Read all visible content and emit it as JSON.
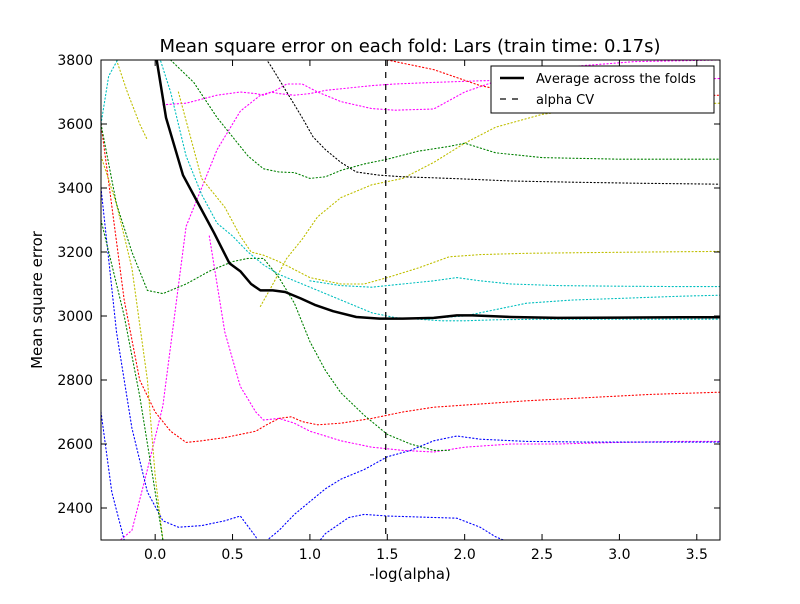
{
  "chart_data": {
    "type": "line",
    "title": "Mean square error on each fold: Lars (train time: 0.17s)",
    "xlabel": "-log(alpha)",
    "ylabel": "Mean square error",
    "xlim": [
      -0.35,
      3.65
    ],
    "ylim": [
      2300,
      3800
    ],
    "x_ticks": [
      0.0,
      0.5,
      1.0,
      1.5,
      2.0,
      2.5,
      3.0,
      3.5
    ],
    "x_tick_labels": [
      "0.0",
      "0.5",
      "1.0",
      "1.5",
      "2.0",
      "2.5",
      "3.0",
      "3.5"
    ],
    "y_ticks": [
      2400,
      2600,
      2800,
      3000,
      3200,
      3400,
      3600,
      3800
    ],
    "y_tick_labels": [
      "2400",
      "2600",
      "2800",
      "3000",
      "3200",
      "3400",
      "3600",
      "3800"
    ],
    "grid": false,
    "legend_position": "top-right",
    "legend": [
      {
        "label": "Average across the folds",
        "style": "solid",
        "color": "#000000"
      },
      {
        "label": "alpha CV",
        "style": "dashed",
        "color": "#000000"
      }
    ],
    "alpha_cv_x": 1.49,
    "average": {
      "color": "#000000",
      "x": [
        0.01,
        0.07,
        0.18,
        0.28,
        0.38,
        0.48,
        0.55,
        0.62,
        0.68,
        0.76,
        0.84,
        0.94,
        1.03,
        1.15,
        1.3,
        1.45,
        1.6,
        1.8,
        1.95,
        2.05,
        2.3,
        2.6,
        3.0,
        3.4,
        3.65
      ],
      "y": [
        3800,
        3620,
        3440,
        3350,
        3260,
        3165,
        3140,
        3100,
        3080,
        3080,
        3075,
        3055,
        3035,
        3015,
        2997,
        2992,
        2992,
        2994,
        3002,
        3002,
        2997,
        2994,
        2995,
        2996,
        2996
      ]
    },
    "folds": [
      {
        "color": "#ff00ff",
        "x": [
          -0.35,
          -0.25,
          -0.15,
          -0.05,
          0.05,
          0.2,
          0.4,
          0.55,
          0.68,
          0.75,
          0.8,
          0.9,
          1.0,
          1.1,
          1.2,
          1.4,
          1.55,
          1.8,
          2.1,
          2.4,
          2.8,
          3.2,
          3.65
        ],
        "y": [
          2280,
          2290,
          2330,
          2520,
          2720,
          3280,
          3520,
          3640,
          3690,
          3700,
          3695,
          3690,
          3695,
          3705,
          3710,
          3720,
          3725,
          3730,
          3735,
          3738,
          3740,
          3741,
          3742
        ]
      },
      {
        "color": "#ff00ff",
        "x": [
          0.05,
          0.2,
          0.4,
          0.55,
          0.65,
          0.7,
          0.78,
          0.85,
          0.95,
          1.05,
          1.2,
          1.4,
          1.55,
          1.8,
          2.0,
          2.3,
          2.7,
          3.1,
          3.65
        ],
        "y": [
          3660,
          3665,
          3690,
          3700,
          3695,
          3690,
          3705,
          3725,
          3725,
          3700,
          3670,
          3648,
          3643,
          3647,
          3700,
          3750,
          3780,
          3795,
          3800
        ]
      },
      {
        "color": "#ff0000",
        "x": [
          -0.35,
          -0.2,
          -0.1,
          0.0,
          0.1,
          0.2,
          0.3,
          0.45,
          0.55,
          0.65,
          0.72,
          0.8,
          0.88,
          0.95,
          1.05,
          1.2,
          1.4,
          1.6,
          1.8,
          2.1,
          2.4,
          2.8,
          3.2,
          3.65
        ],
        "y": [
          3600,
          3050,
          2800,
          2700,
          2640,
          2605,
          2610,
          2620,
          2630,
          2640,
          2660,
          2680,
          2685,
          2670,
          2660,
          2665,
          2680,
          2700,
          2715,
          2725,
          2735,
          2745,
          2755,
          2762
        ]
      },
      {
        "color": "#ff00ff",
        "x": [
          0.35,
          0.45,
          0.55,
          0.65,
          0.7,
          0.8,
          0.9,
          1.0,
          1.2,
          1.4,
          1.6,
          1.8,
          2.0,
          2.3,
          2.6,
          3.0,
          3.4,
          3.65
        ],
        "y": [
          3250,
          2950,
          2780,
          2700,
          2675,
          2680,
          2665,
          2640,
          2610,
          2590,
          2580,
          2575,
          2590,
          2600,
          2600,
          2605,
          2608,
          2608
        ]
      },
      {
        "color": "#ff0000",
        "x": [
          1.5,
          1.8,
          2.1,
          2.4,
          2.7,
          3.0,
          3.3,
          3.65
        ],
        "y": [
          3800,
          3770,
          3720,
          3690,
          3680,
          3680,
          3685,
          3690
        ]
      },
      {
        "color": "#0000ff",
        "x": [
          -0.35,
          -0.25,
          -0.15,
          -0.05,
          0.05,
          0.15,
          0.3,
          0.45,
          0.55,
          0.65,
          0.7
        ],
        "y": [
          3400,
          2950,
          2650,
          2450,
          2360,
          2340,
          2345,
          2360,
          2375,
          2310,
          2260
        ]
      },
      {
        "color": "#0000ff",
        "x": [
          0.7,
          0.8,
          0.9,
          1.0,
          1.1,
          1.2,
          1.35,
          1.5,
          1.65,
          1.8,
          1.95,
          2.1,
          2.4,
          2.8,
          3.2,
          3.65
        ],
        "y": [
          2290,
          2330,
          2380,
          2420,
          2460,
          2490,
          2520,
          2560,
          2580,
          2610,
          2625,
          2615,
          2608,
          2606,
          2606,
          2606
        ]
      },
      {
        "color": "#0000ff",
        "x": [
          0.8,
          1.0,
          1.1,
          1.25,
          1.35,
          1.5,
          1.7,
          1.95,
          2.1,
          2.2,
          2.35
        ],
        "y": [
          2220,
          2260,
          2320,
          2370,
          2380,
          2375,
          2372,
          2368,
          2340,
          2310,
          2280
        ]
      },
      {
        "color": "#0000ff",
        "x": [
          -0.35,
          -0.28,
          -0.2,
          -0.12,
          -0.05,
          0.02,
          0.08
        ],
        "y": [
          2700,
          2450,
          2300,
          2200,
          2180,
          2200,
          2180
        ]
      },
      {
        "color": "#bfbf00",
        "x": [
          0.15,
          0.3,
          0.45,
          0.55,
          0.62,
          0.7,
          0.8,
          1.0,
          1.2,
          1.35,
          1.5,
          1.7,
          1.9,
          2.1,
          2.4,
          2.8,
          3.2,
          3.65
        ],
        "y": [
          3700,
          3430,
          3340,
          3250,
          3200,
          3190,
          3170,
          3120,
          3100,
          3100,
          3120,
          3150,
          3185,
          3192,
          3196,
          3198,
          3200,
          3202
        ]
      },
      {
        "color": "#bfbf00",
        "x": [
          0.68,
          0.75,
          0.85,
          0.95,
          1.05,
          1.2,
          1.4,
          1.6,
          1.8,
          2.0,
          2.2,
          2.5,
          2.8,
          3.2,
          3.65
        ],
        "y": [
          3030,
          3090,
          3180,
          3240,
          3310,
          3370,
          3410,
          3430,
          3480,
          3540,
          3590,
          3630,
          3650,
          3660,
          3665
        ]
      },
      {
        "color": "#bfbf00",
        "x": [
          -0.35,
          -0.25,
          -0.15,
          -0.05,
          0.0,
          0.05
        ],
        "y": [
          3500,
          3350,
          3150,
          2800,
          2500,
          2300
        ]
      },
      {
        "color": "#bfbf00",
        "x": [
          -0.25,
          -0.18,
          -0.1,
          -0.05
        ],
        "y": [
          3800,
          3700,
          3600,
          3550
        ]
      },
      {
        "color": "#008000",
        "x": [
          0.1,
          0.25,
          0.4,
          0.5,
          0.6,
          0.7,
          0.8,
          0.9,
          1.0,
          1.1,
          1.2,
          1.35,
          1.5,
          1.7,
          1.9,
          2.0,
          2.2,
          2.5,
          3.0,
          3.65
        ],
        "y": [
          3800,
          3730,
          3620,
          3560,
          3500,
          3460,
          3450,
          3448,
          3430,
          3435,
          3455,
          3475,
          3490,
          3515,
          3530,
          3540,
          3510,
          3495,
          3490,
          3490
        ]
      },
      {
        "color": "#008000",
        "x": [
          -0.35,
          -0.25,
          -0.15,
          -0.05,
          0.05,
          0.2,
          0.35,
          0.5,
          0.6,
          0.7,
          0.8,
          0.9,
          1.0,
          1.1,
          1.2,
          1.35,
          1.5,
          1.65,
          1.8,
          1.9
        ],
        "y": [
          3600,
          3350,
          3200,
          3080,
          3070,
          3100,
          3140,
          3170,
          3180,
          3180,
          3120,
          3040,
          2920,
          2830,
          2760,
          2690,
          2630,
          2600,
          2580,
          2580
        ]
      },
      {
        "color": "#008000",
        "x": [
          -0.35,
          -0.2,
          -0.1,
          0.0,
          0.05,
          0.1
        ],
        "y": [
          3300,
          3000,
          2750,
          2450,
          2300,
          2200
        ]
      },
      {
        "color": "#000000",
        "x": [
          0.65,
          0.75,
          0.85,
          0.95,
          1.02,
          1.1,
          1.2,
          1.3,
          1.45,
          1.6,
          1.8,
          2.0,
          2.3,
          2.7,
          3.1,
          3.65
        ],
        "y": [
          3850,
          3780,
          3700,
          3620,
          3560,
          3520,
          3480,
          3450,
          3440,
          3435,
          3432,
          3428,
          3422,
          3418,
          3415,
          3412
        ]
      },
      {
        "color": "#00bfbf",
        "x": [
          0.0,
          0.1,
          0.2,
          0.3,
          0.4,
          0.5,
          0.6,
          0.7,
          0.8,
          0.95,
          1.1,
          1.25,
          1.4,
          1.55,
          1.7,
          1.85,
          2.0,
          2.2,
          2.5,
          3.0,
          3.65
        ],
        "y": [
          3850,
          3700,
          3500,
          3380,
          3290,
          3250,
          3200,
          3160,
          3130,
          3100,
          3070,
          3040,
          3010,
          2995,
          2990,
          2985,
          2985,
          2988,
          2990,
          2990,
          2990
        ]
      },
      {
        "color": "#00bfbf",
        "x": [
          1.0,
          1.2,
          1.4,
          1.6,
          1.8,
          1.95,
          2.1,
          2.3,
          2.6,
          3.0,
          3.4,
          3.65
        ],
        "y": [
          3110,
          3095,
          3090,
          3100,
          3110,
          3120,
          3110,
          3100,
          3095,
          3093,
          3092,
          3092
        ]
      },
      {
        "color": "#00bfbf",
        "x": [
          1.75,
          1.85,
          2.0,
          2.2,
          2.4,
          2.7,
          3.0,
          3.4,
          3.65
        ],
        "y": [
          2990,
          2995,
          3000,
          3020,
          3040,
          3050,
          3055,
          3062,
          3065
        ]
      },
      {
        "color": "#00bfbf",
        "x": [
          -0.35,
          -0.3,
          -0.22
        ],
        "y": [
          3600,
          3750,
          3820
        ]
      }
    ]
  }
}
